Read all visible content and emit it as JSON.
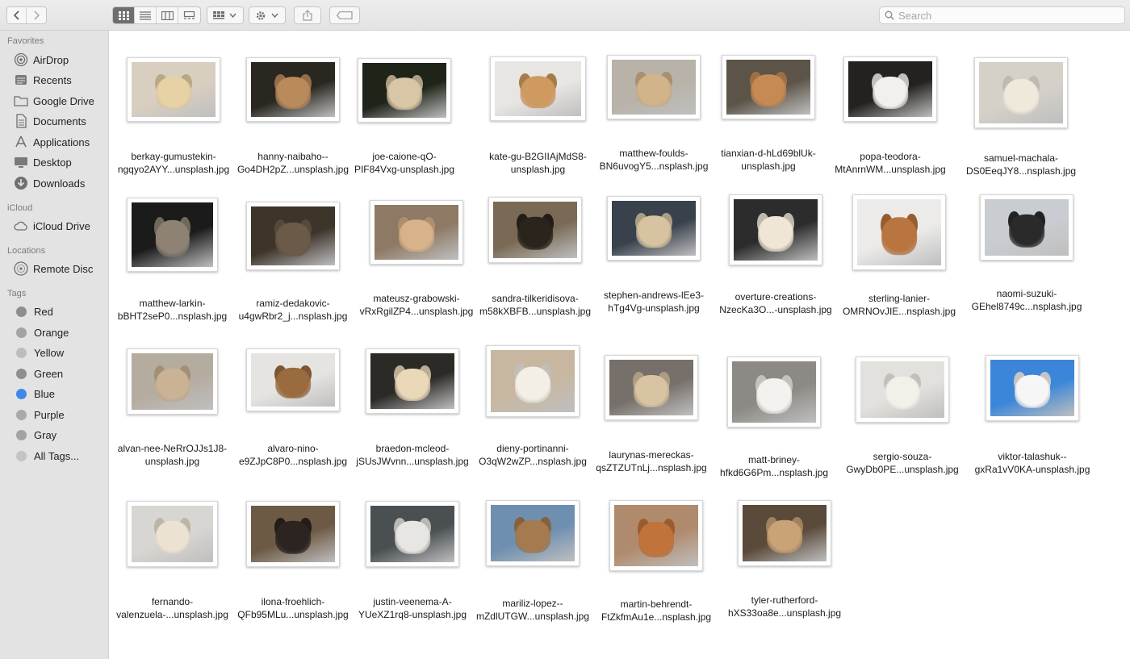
{
  "window": {
    "search_placeholder": "Search"
  },
  "toolbar": {
    "icons": [
      "chevron-left-icon",
      "chevron-right-icon",
      "icon-view-icon",
      "list-view-icon",
      "column-view-icon",
      "gallery-view-icon",
      "group-icon",
      "gear-icon",
      "share-icon",
      "tag-icon",
      "search-icon"
    ]
  },
  "sidebar": {
    "favorites_header": "Favorites",
    "favorites": [
      {
        "label": "AirDrop",
        "icon": "airdrop-icon"
      },
      {
        "label": "Recents",
        "icon": "clock-icon"
      },
      {
        "label": "Google Drive",
        "icon": "folder-icon"
      },
      {
        "label": "Documents",
        "icon": "document-icon"
      },
      {
        "label": "Applications",
        "icon": "applications-icon"
      },
      {
        "label": "Desktop",
        "icon": "desktop-icon"
      },
      {
        "label": "Downloads",
        "icon": "download-icon"
      }
    ],
    "icloud_header": "iCloud",
    "icloud": [
      {
        "label": "iCloud Drive",
        "icon": "cloud-icon"
      }
    ],
    "locations_header": "Locations",
    "locations": [
      {
        "label": "Remote Disc",
        "icon": "disc-icon"
      }
    ],
    "tags_header": "Tags",
    "tags": [
      {
        "label": "Red",
        "color": "#8e8e8e"
      },
      {
        "label": "Orange",
        "color": "#a3a3a3"
      },
      {
        "label": "Yellow",
        "color": "#bdbdbd"
      },
      {
        "label": "Green",
        "color": "#8f8f8f"
      },
      {
        "label": "Blue",
        "color": "#3f88e6"
      },
      {
        "label": "Purple",
        "color": "#a9a9a9"
      },
      {
        "label": "Gray",
        "color": "#a3a3a3"
      },
      {
        "label": "All Tags...",
        "color": "#c4c4c4"
      }
    ]
  },
  "files": [
    {
      "line1": "berkay-gumustekin-",
      "line2": "ngqyo2AYY...unsplash.jpg",
      "tone": "#d9cfc0",
      "dog": "#e7d2a6"
    },
    {
      "line1": "hanny-naibaho--",
      "line2": "Go4DH2pZ...unsplash.jpg",
      "tone": "#2a2620",
      "dog": "#b88a5c"
    },
    {
      "line1": "joe-caione-qO-",
      "line2": "PIF84Vxg-unsplash.jpg",
      "tone": "#1e2418",
      "dog": "#d9c6a6"
    },
    {
      "line1": "kate-gu-B2GIIAjMdS8-",
      "line2": "unsplash.jpg",
      "tone": "#e8e6e2",
      "dog": "#cf9a5f"
    },
    {
      "line1": "matthew-foulds-",
      "line2": "BN6uvogY5...nsplash.jpg",
      "tone": "#b8b2a8",
      "dog": "#d2b48a"
    },
    {
      "line1": "tianxian-d-hLd69blUk-",
      "line2": "unsplash.jpg",
      "tone": "#5c5448",
      "dog": "#c78a55"
    },
    {
      "line1": "popa-teodora-",
      "line2": "MtAnrnWM...unsplash.jpg",
      "tone": "#23221f",
      "dog": "#f2f0ec"
    },
    {
      "line1": "samuel-machala-",
      "line2": "DS0EeqJY8...nsplash.jpg",
      "tone": "#d5d1c9",
      "dog": "#efe9dc"
    },
    {
      "line1": "matthew-larkin-",
      "line2": "bBHT2seP0...nsplash.jpg",
      "tone": "#1b1b1b",
      "dog": "#8d8273"
    },
    {
      "line1": "ramiz-dedakovic-",
      "line2": "u4gwRbr2_j...nsplash.jpg",
      "tone": "#3d342a",
      "dog": "#6c5a48"
    },
    {
      "line1": "mateusz-grabowski-",
      "line2": "vRxRgilZP4...unsplash.jpg",
      "tone": "#8e7a64",
      "dog": "#d8b28a"
    },
    {
      "line1": "sandra-tilkeridisova-",
      "line2": "m58kXBFB...unsplash.jpg",
      "tone": "#7a6a55",
      "dog": "#2a241d"
    },
    {
      "line1": "stephen-andrews-lEe3-",
      "line2": "hTg4Vg-unsplash.jpg",
      "tone": "#39424c",
      "dog": "#d7c3a1"
    },
    {
      "line1": "overture-creations-",
      "line2": "NzecKa3O...-unsplash.jpg",
      "tone": "#2c2c2c",
      "dog": "#efe6d6"
    },
    {
      "line1": "sterling-lanier-",
      "line2": "OMRNOvJIE...nsplash.jpg",
      "tone": "#ecebea",
      "dog": "#b9753f"
    },
    {
      "line1": "naomi-suzuki-",
      "line2": "GEhel8749c...nsplash.jpg",
      "tone": "#c9ccd0",
      "dog": "#2a2a2a"
    },
    {
      "line1": "alvan-nee-NeRrOJJs1J8-",
      "line2": "unsplash.jpg",
      "tone": "#b5aca0",
      "dog": "#c9b394"
    },
    {
      "line1": "alvaro-nino-",
      "line2": "e9ZJpC8P0...nsplash.jpg",
      "tone": "#e6e4e1",
      "dog": "#9a6b3e"
    },
    {
      "line1": "braedon-mcleod-",
      "line2": "jSUsJWvnn...unsplash.jpg",
      "tone": "#2c2a27",
      "dog": "#ead8b8"
    },
    {
      "line1": "dieny-portinanni-",
      "line2": "O3qW2wZP...nsplash.jpg",
      "tone": "#c7b7a0",
      "dog": "#f3eee6"
    },
    {
      "line1": "laurynas-mereckas-",
      "line2": "qsZTZUTnLj...nsplash.jpg",
      "tone": "#77706a",
      "dog": "#d8c3a3"
    },
    {
      "line1": "matt-briney-",
      "line2": "hfkd6G6Pm...nsplash.jpg",
      "tone": "#8d8a85",
      "dog": "#f4f2ee"
    },
    {
      "line1": "sergio-souza-",
      "line2": "GwyDb0PE...unsplash.jpg",
      "tone": "#e3e1dd",
      "dog": "#f3f0ea"
    },
    {
      "line1": "viktor-talashuk--",
      "line2": "gxRa1vV0KA-unsplash.jpg",
      "tone": "#3b86d8",
      "dog": "#f6f6f6"
    },
    {
      "line1": "fernando-",
      "line2": "valenzuela-...unsplash.jpg",
      "tone": "#d8d6d2",
      "dog": "#ece2d2"
    },
    {
      "line1": "ilona-froehlich-",
      "line2": "QFb95MLu...unsplash.jpg",
      "tone": "#6d5a45",
      "dog": "#2b2420"
    },
    {
      "line1": "justin-veenema-A-",
      "line2": "YUeXZ1rq8-unsplash.jpg",
      "tone": "#4a4f52",
      "dog": "#e8e6e2"
    },
    {
      "line1": "mariliz-lopez--",
      "line2": "mZdlUTGW...unsplash.jpg",
      "tone": "#6f8fb0",
      "dog": "#a57a4f"
    },
    {
      "line1": "martin-behrendt-",
      "line2": "FtZkfmAu1e...nsplash.jpg",
      "tone": "#b08a6c",
      "dog": "#c0733b"
    },
    {
      "line1": "tyler-rutherford-",
      "line2": "hXS33oa8e...unsplash.jpg",
      "tone": "#5a4a3a",
      "dog": "#c9a276"
    }
  ]
}
